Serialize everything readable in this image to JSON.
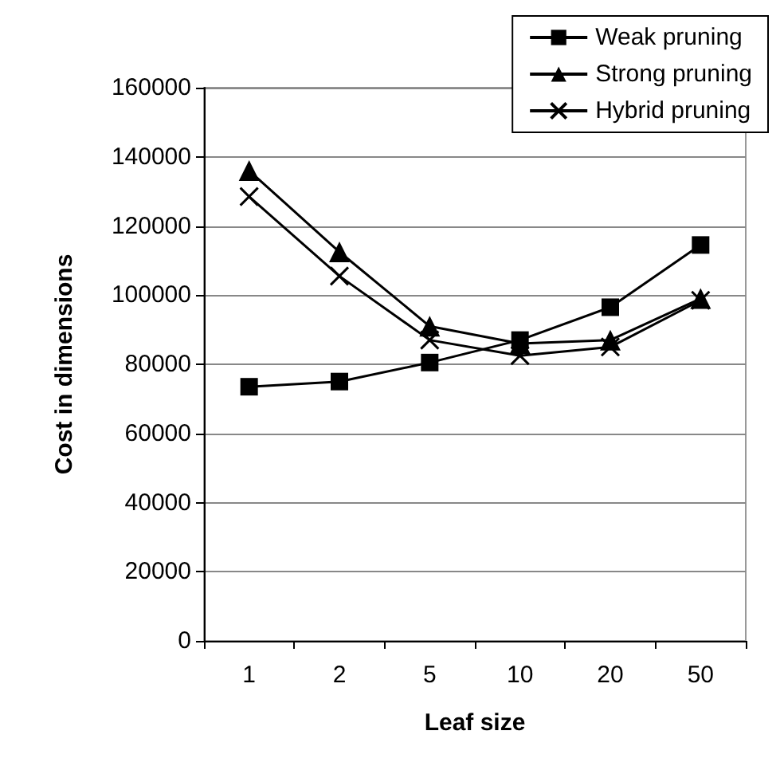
{
  "chart_data": {
    "type": "line",
    "xlabel": "Leaf size",
    "ylabel": "Cost in dimensions",
    "categories": [
      "1",
      "2",
      "5",
      "10",
      "20",
      "50"
    ],
    "series": [
      {
        "name": "Weak pruning",
        "color": "#000000",
        "marker": "square",
        "values": [
          73500,
          75000,
          80500,
          87000,
          96500,
          114500
        ]
      },
      {
        "name": "Strong pruning",
        "color": "#000000",
        "marker": "triangle",
        "values": [
          136000,
          112500,
          91000,
          86000,
          87000,
          99000
        ]
      },
      {
        "name": "Hybrid pruning",
        "color": "#000000",
        "marker": "cross",
        "values": [
          128500,
          105500,
          87000,
          82500,
          85000,
          98500
        ]
      }
    ],
    "ylim": [
      0,
      160000
    ],
    "yticks": [
      0,
      20000,
      40000,
      60000,
      80000,
      100000,
      120000,
      140000,
      160000
    ],
    "grid": "y",
    "legend": "top right"
  }
}
